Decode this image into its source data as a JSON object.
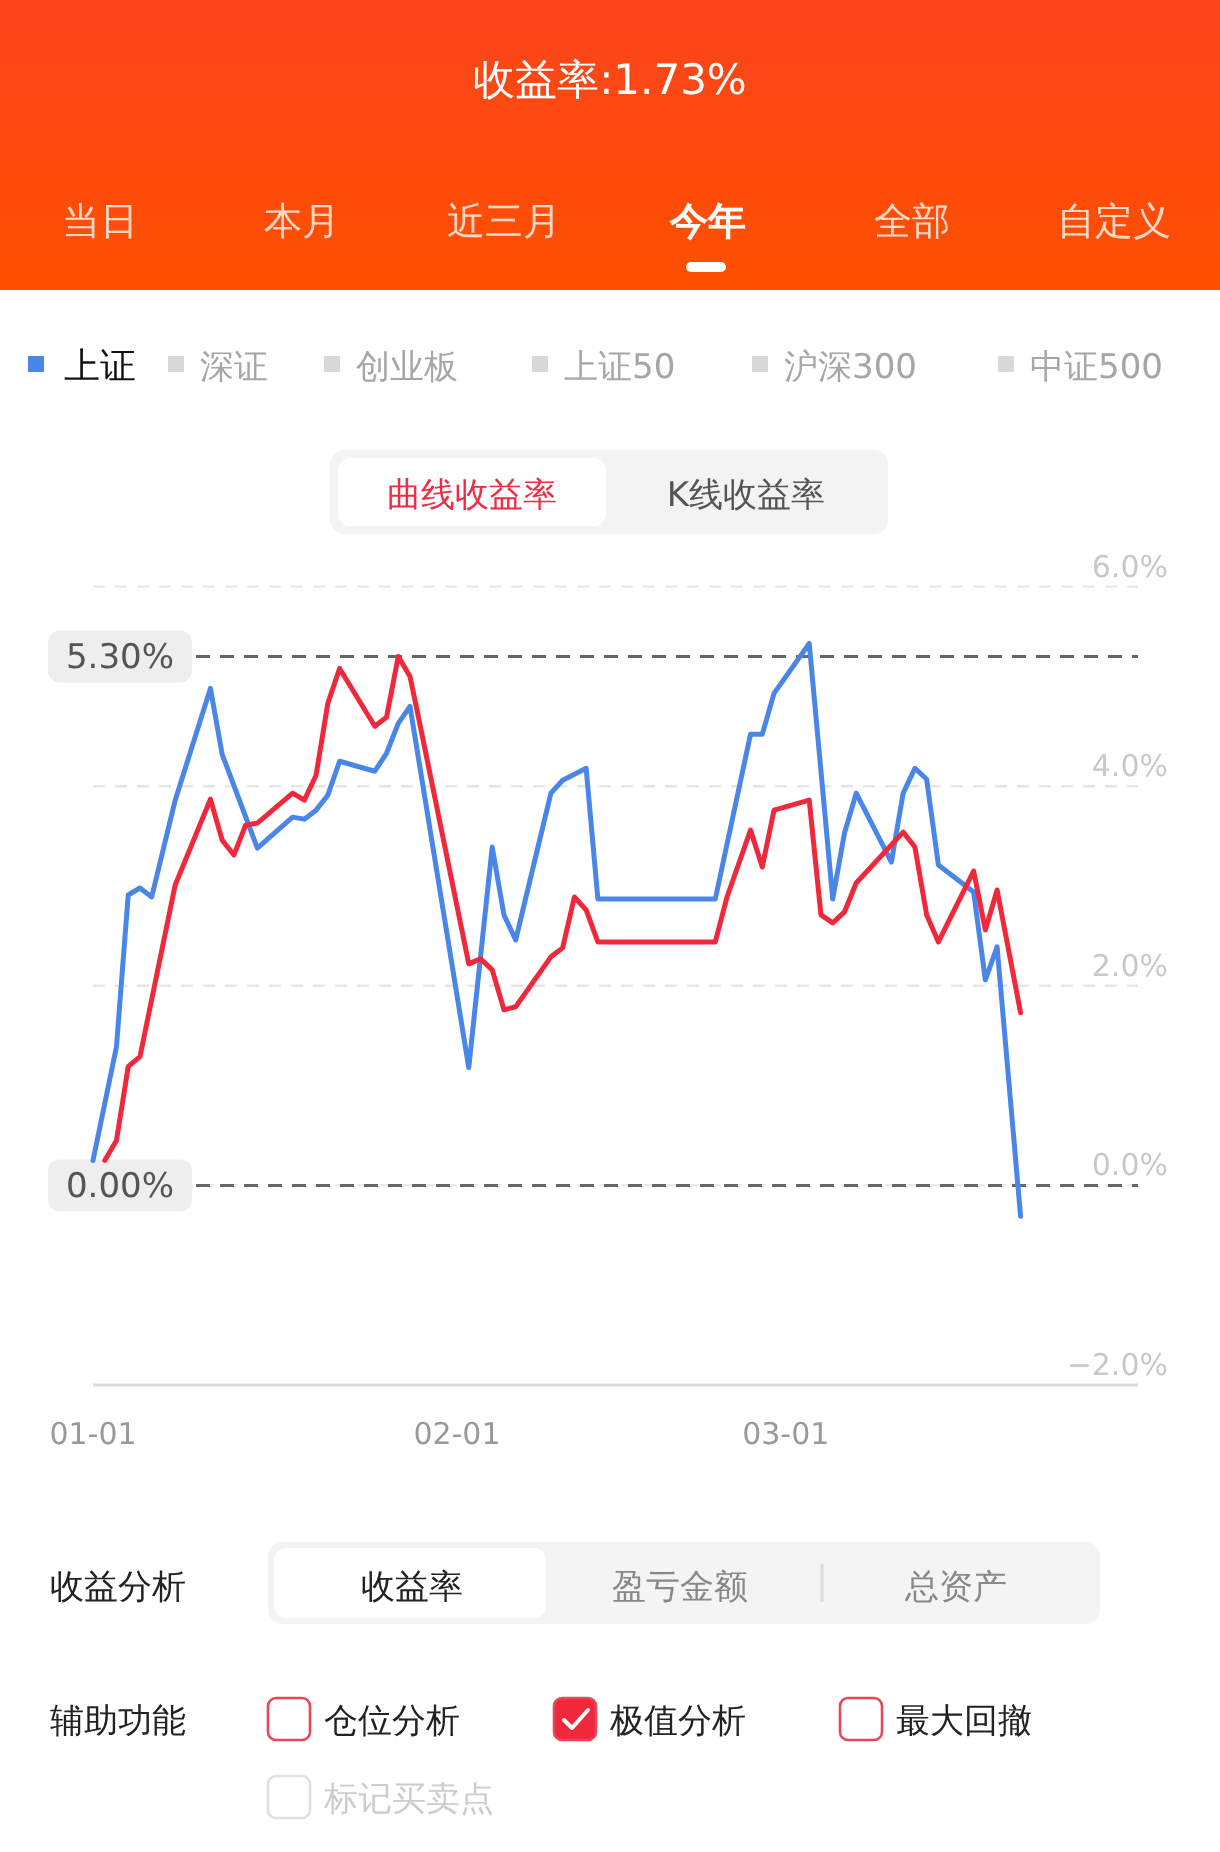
{
  "chart_data": {
    "type": "line",
    "title": "收益率:1.73%",
    "xlim": [
      "--01-01",
      "--03-31"
    ],
    "xticks": [
      {
        "value": "--01-01",
        "label": "01-01"
      },
      {
        "value": "--02-01",
        "label": "02-01"
      },
      {
        "value": "--03-01",
        "label": "03-01"
      }
    ],
    "ylim": [
      -2,
      6
    ],
    "yticks": [
      {
        "value": -2,
        "label": "−2.0%"
      },
      {
        "value": 0,
        "label": "0.0%"
      },
      {
        "value": 2,
        "label": "2.0%"
      },
      {
        "value": 4,
        "label": "4.0%"
      },
      {
        "value": 6,
        "label": "6.0%"
      }
    ],
    "grid": "y",
    "legend": "top left",
    "line_style": "solid",
    "series": [
      {
        "name": "上证",
        "color": "#4a86e8",
        "x": [
          "--01-01",
          "--01-03",
          "--01-04",
          "--01-05",
          "--01-06",
          "--01-08",
          "--01-11",
          "--01-12",
          "--01-15",
          "--01-18",
          "--01-19",
          "--01-20",
          "--01-21",
          "--01-22",
          "--01-25",
          "--01-26",
          "--01-27",
          "--01-28",
          "--02-02",
          "--02-04",
          "--02-05",
          "--02-06",
          "--02-09",
          "--02-10",
          "--02-12",
          "--02-13",
          "--02-23",
          "--02-26",
          "--02-27",
          "--02-28",
          "--03-03",
          "--03-05",
          "--03-06",
          "--03-07",
          "--03-10",
          "--03-11",
          "--03-12",
          "--03-13",
          "--03-14",
          "--03-17",
          "--03-18",
          "--03-19",
          "--03-21"
        ],
        "values": [
          0.25,
          1.39,
          2.91,
          2.98,
          2.89,
          3.86,
          4.98,
          4.32,
          3.38,
          3.69,
          3.67,
          3.76,
          3.91,
          4.25,
          4.15,
          4.33,
          4.63,
          4.8,
          1.18,
          3.39,
          2.71,
          2.46,
          3.93,
          4.06,
          4.18,
          2.87,
          2.87,
          4.52,
          4.52,
          4.93,
          5.43,
          2.87,
          3.53,
          3.93,
          3.24,
          3.93,
          4.18,
          4.07,
          3.21,
          2.94,
          2.06,
          2.39,
          -0.31
        ]
      },
      {
        "color": "#f0283c",
        "x": [
          "--01-02",
          "--01-03",
          "--01-04",
          "--01-05",
          "--01-08",
          "--01-11",
          "--01-12",
          "--01-13",
          "--01-14",
          "--01-15",
          "--01-18",
          "--01-19",
          "--01-20",
          "--01-21",
          "--01-22",
          "--01-25",
          "--01-26",
          "--01-27",
          "--01-28",
          "--01-29",
          "--02-02",
          "--02-03",
          "--02-04",
          "--02-05",
          "--02-06",
          "--02-09",
          "--02-10",
          "--02-11",
          "--02-12",
          "--02-13",
          "--02-23",
          "--02-24",
          "--02-26",
          "--02-27",
          "--02-28",
          "--03-03",
          "--03-04",
          "--03-05",
          "--03-06",
          "--03-07",
          "--03-11",
          "--03-12",
          "--03-13",
          "--03-14",
          "--03-17",
          "--03-18",
          "--03-19",
          "--03-21"
        ],
        "values": [
          0.25,
          0.45,
          1.19,
          1.29,
          3.01,
          3.87,
          3.46,
          3.31,
          3.61,
          3.63,
          3.93,
          3.86,
          4.11,
          4.83,
          5.18,
          4.6,
          4.69,
          5.3,
          5.1,
          4.53,
          2.22,
          2.27,
          2.16,
          1.76,
          1.79,
          2.29,
          2.38,
          2.89,
          2.76,
          2.44,
          2.44,
          2.89,
          3.56,
          3.19,
          3.76,
          3.86,
          2.71,
          2.63,
          2.74,
          3.03,
          3.54,
          3.39,
          2.71,
          2.44,
          3.15,
          2.56,
          2.96,
          1.73
        ]
      }
    ],
    "ref_lines": [
      {
        "axis": "y",
        "value": 5.3,
        "label": "5.30%",
        "color": "#666666",
        "line_style": "dashed"
      },
      {
        "axis": "y",
        "value": 0,
        "label": "0.00%",
        "color": "#666666",
        "line_style": "dashed"
      }
    ],
    "annotations": [
      "当日",
      "本月",
      "近三月",
      "今年",
      "全部",
      "自定义",
      "深证",
      "创业板",
      "上证50",
      "沪深300",
      "中证500",
      "曲线收益率",
      "K线收益率",
      "收益分析",
      "收益率",
      "盈亏金额",
      "总资产",
      "辅助功能",
      "仓位分析",
      "极值分析",
      "最大回撤",
      "标记买卖点"
    ]
  }
}
